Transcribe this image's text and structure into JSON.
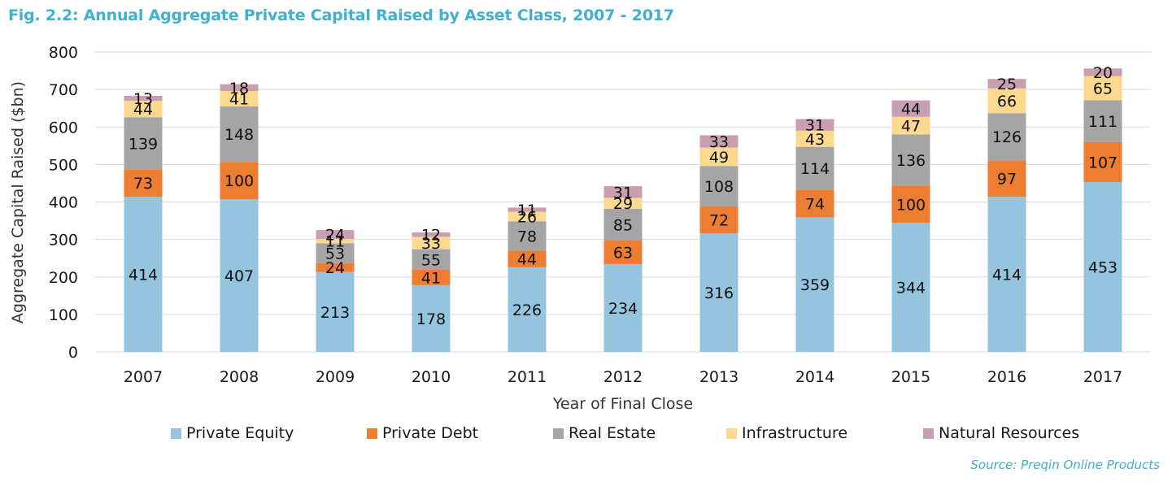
{
  "figure": {
    "title": "Fig. 2.2: Annual Aggregate Private Capital Raised by Asset Class, 2007 - 2017",
    "source": "Source: Preqin Online Products"
  },
  "chart_data": {
    "type": "bar",
    "stacked": true,
    "title": "Fig. 2.2: Annual Aggregate Private Capital Raised by Asset Class, 2007 - 2017",
    "xlabel": "Year of Final Close",
    "ylabel": "Aggregate Capital Raised ($bn)",
    "ylim": [
      0,
      800
    ],
    "yticks": [
      0,
      100,
      200,
      300,
      400,
      500,
      600,
      700,
      800
    ],
    "grid": true,
    "legend_position": "bottom",
    "categories": [
      "2007",
      "2008",
      "2009",
      "2010",
      "2011",
      "2012",
      "2013",
      "2014",
      "2015",
      "2016",
      "2017"
    ],
    "series": [
      {
        "name": "Private Equity",
        "color": "#95c5de",
        "values": [
          414,
          407,
          213,
          178,
          226,
          234,
          316,
          359,
          344,
          414,
          453
        ]
      },
      {
        "name": "Private Debt",
        "color": "#ed7d31",
        "values": [
          73,
          100,
          24,
          41,
          44,
          63,
          72,
          74,
          100,
          97,
          107
        ]
      },
      {
        "name": "Real Estate",
        "color": "#a5a5a5",
        "values": [
          139,
          148,
          53,
          55,
          78,
          85,
          108,
          114,
          136,
          126,
          111
        ]
      },
      {
        "name": "Infrastructure",
        "color": "#fcd98f",
        "values": [
          44,
          41,
          11,
          33,
          26,
          29,
          49,
          43,
          47,
          66,
          65
        ]
      },
      {
        "name": "Natural Resources",
        "color": "#c89eb3",
        "values": [
          13,
          18,
          24,
          12,
          11,
          31,
          33,
          31,
          44,
          25,
          20
        ]
      }
    ]
  }
}
